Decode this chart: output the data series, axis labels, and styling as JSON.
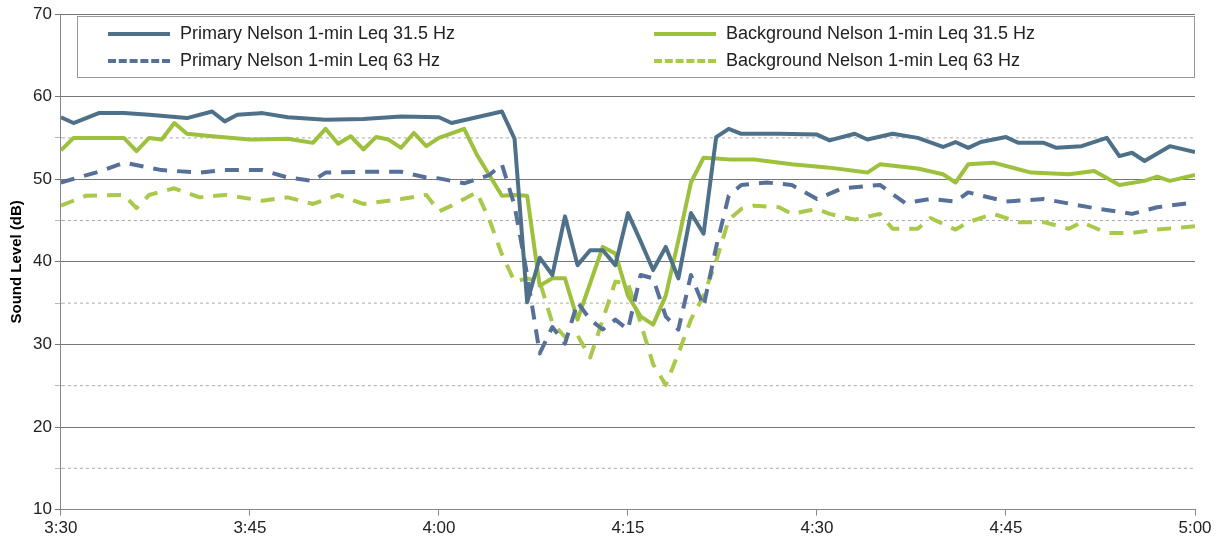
{
  "chart_data": {
    "type": "line",
    "ylabel": "Sound Level (dB)",
    "ylim": [
      10,
      70
    ],
    "yticks": [
      10,
      {
        "value": 15,
        "label": null
      },
      20,
      {
        "value": 25,
        "label": null
      },
      30,
      {
        "value": 35,
        "label": null
      },
      40,
      {
        "value": 45,
        "label": null
      },
      50,
      {
        "value": 55,
        "label": null
      },
      60,
      70
    ],
    "xlim": [
      3.5,
      5
    ],
    "xticks": [
      {
        "value": 3.5,
        "label": "3:30"
      },
      {
        "value": 3.75,
        "label": "3:45"
      },
      {
        "value": 4,
        "label": "4:00"
      },
      {
        "value": 4.25,
        "label": "4:15"
      },
      {
        "value": 4.5,
        "label": "4:30"
      },
      {
        "value": 4.75,
        "label": "4:45"
      },
      {
        "value": 5,
        "label": "5:00"
      }
    ],
    "grid": "y",
    "legend": "top",
    "marker": "none",
    "series": [
      {
        "name": "Primary Nelson 1-min Leq 31.5 Hz",
        "color": "#4e7189",
        "line_style": "solid",
        "x": [
          3.5,
          3.5167,
          3.55,
          3.5833,
          3.6167,
          3.6667,
          3.7,
          3.7167,
          3.7333,
          3.7667,
          3.8,
          3.85,
          3.9,
          3.95,
          4,
          4.0167,
          4.05,
          4.0833,
          4.1,
          4.1167,
          4.1333,
          4.15,
          4.1667,
          4.1833,
          4.2,
          4.2167,
          4.2333,
          4.25,
          4.2667,
          4.2833,
          4.3,
          4.3167,
          4.3333,
          4.35,
          4.3667,
          4.3833,
          4.4,
          4.45,
          4.5,
          4.5167,
          4.55,
          4.5667,
          4.6,
          4.6333,
          4.6667,
          4.6833,
          4.7,
          4.7167,
          4.75,
          4.7667,
          4.8,
          4.8167,
          4.85,
          4.8833,
          4.9,
          4.9167,
          4.9333,
          4.9667,
          5
        ],
        "values": [
          57.5,
          56.8,
          58,
          58,
          57.8,
          57.4,
          58.2,
          57,
          57.8,
          58,
          57.5,
          57.2,
          57.3,
          57.6,
          57.5,
          56.8,
          57.5,
          58.2,
          54.9,
          35.1,
          40.5,
          38.4,
          45.5,
          39.6,
          41.4,
          41.4,
          39.6,
          45.9,
          42.5,
          39,
          41.8,
          38,
          45.9,
          43.4,
          55.1,
          56.1,
          55.5,
          55.5,
          55.4,
          54.7,
          55.5,
          54.8,
          55.5,
          55,
          53.9,
          54.5,
          53.8,
          54.5,
          55.1,
          54.4,
          54.4,
          53.8,
          54,
          55,
          52.8,
          53.2,
          52.2,
          54,
          53.3
        ]
      },
      {
        "name": "Primary Nelson 1-min Leq 63 Hz",
        "color": "#56709a",
        "line_style": "dashed",
        "x": [
          3.5,
          3.55,
          3.5833,
          3.6333,
          3.6833,
          3.7167,
          3.7667,
          3.8,
          3.8333,
          3.85,
          3.9,
          3.95,
          3.9833,
          4,
          4.0333,
          4.0667,
          4.0833,
          4.1,
          4.1167,
          4.1333,
          4.15,
          4.1667,
          4.1833,
          4.2,
          4.2167,
          4.2333,
          4.25,
          4.2667,
          4.2833,
          4.3,
          4.3167,
          4.3333,
          4.35,
          4.3667,
          4.3833,
          4.4,
          4.4333,
          4.4667,
          4.5,
          4.5333,
          4.5833,
          4.6167,
          4.65,
          4.6833,
          4.7,
          4.75,
          4.8,
          4.8667,
          4.9167,
          4.95,
          5
        ],
        "values": [
          49.6,
          50.9,
          52,
          51.1,
          50.8,
          51.1,
          51.1,
          50.2,
          49.8,
          50.8,
          50.9,
          50.9,
          50.2,
          50.1,
          49.5,
          50.5,
          51.8,
          46.8,
          38.4,
          28.9,
          32.1,
          30.1,
          35.1,
          33,
          31.8,
          33,
          31.8,
          38.4,
          38,
          33.4,
          31.8,
          38.4,
          34.6,
          41.8,
          48,
          49.3,
          49.6,
          49.3,
          47.6,
          48.9,
          49.3,
          47.1,
          47.6,
          47.3,
          48.4,
          47.3,
          47.6,
          46.5,
          45.8,
          46.6,
          47.2
        ]
      },
      {
        "name": "Background Nelson 1-min Leq 31.5 Hz",
        "color": "#9dc13c",
        "line_style": "solid",
        "x": [
          3.5,
          3.5167,
          3.55,
          3.5833,
          3.6,
          3.6167,
          3.6333,
          3.65,
          3.6667,
          3.7,
          3.75,
          3.8,
          3.8333,
          3.85,
          3.8667,
          3.8833,
          3.9,
          3.9167,
          3.9333,
          3.95,
          3.9667,
          3.9833,
          4,
          4.0333,
          4.05,
          4.0833,
          4.1,
          4.1167,
          4.1333,
          4.15,
          4.1667,
          4.1833,
          4.2,
          4.2167,
          4.2333,
          4.25,
          4.2667,
          4.2833,
          4.3,
          4.3167,
          4.3333,
          4.35,
          4.3667,
          4.3833,
          4.4,
          4.4167,
          4.4667,
          4.5167,
          4.5667,
          4.5833,
          4.6333,
          4.6667,
          4.6833,
          4.7,
          4.7333,
          4.7833,
          4.8333,
          4.8667,
          4.9,
          4.9333,
          4.95,
          4.9667,
          5
        ],
        "values": [
          53.5,
          55,
          55,
          55,
          53.4,
          55,
          54.8,
          56.8,
          55.5,
          55.2,
          54.8,
          54.9,
          54.4,
          56.1,
          54.3,
          55.2,
          53.6,
          55.1,
          54.8,
          53.8,
          55.6,
          54,
          55,
          56.1,
          53,
          48,
          48.1,
          48,
          37.1,
          38,
          38,
          33,
          37.4,
          41.8,
          41,
          35.9,
          33.4,
          32.4,
          35.9,
          42.6,
          49.6,
          52.6,
          52.5,
          52.4,
          52.4,
          52.4,
          51.8,
          51.4,
          50.8,
          51.8,
          51.3,
          50.6,
          49.6,
          51.8,
          52,
          50.8,
          50.6,
          51,
          49.3,
          49.8,
          50.3,
          49.8,
          50.5
        ]
      },
      {
        "name": "Background Nelson 1-min Leq 63 Hz",
        "color": "#a9c94a",
        "line_style": "dashed",
        "x": [
          3.5,
          3.5333,
          3.5833,
          3.6,
          3.6167,
          3.65,
          3.6833,
          3.7167,
          3.7667,
          3.8,
          3.8333,
          3.8667,
          3.9,
          3.95,
          3.9833,
          4,
          4.0167,
          4.0333,
          4.05,
          4.0667,
          4.0833,
          4.1,
          4.1167,
          4.1333,
          4.15,
          4.1667,
          4.1833,
          4.2,
          4.2167,
          4.2333,
          4.25,
          4.2667,
          4.2833,
          4.3,
          4.3167,
          4.3333,
          4.35,
          4.3667,
          4.3833,
          4.4,
          4.4167,
          4.45,
          4.4667,
          4.5,
          4.5167,
          4.55,
          4.5833,
          4.6,
          4.6333,
          4.65,
          4.6833,
          4.7,
          4.7333,
          4.7667,
          4.8,
          4.8333,
          4.85,
          4.8833,
          4.9167,
          4.95,
          5
        ],
        "values": [
          46.8,
          48,
          48.1,
          46.5,
          48.1,
          48.9,
          47.8,
          48.1,
          47.4,
          47.8,
          47,
          48.1,
          47,
          47.6,
          48.1,
          46.1,
          46.8,
          47.6,
          48.4,
          45.1,
          40.9,
          37.6,
          38,
          37.6,
          32.6,
          30.9,
          31.1,
          28.4,
          33,
          37.6,
          37.4,
          32.6,
          27.6,
          25.1,
          28.9,
          33,
          35.9,
          40.1,
          45.1,
          46.4,
          46.8,
          46.6,
          45.8,
          46.4,
          45.8,
          45.1,
          45.8,
          44,
          44,
          45.3,
          43.9,
          44.8,
          45.8,
          44.8,
          44.8,
          44,
          44.8,
          43.5,
          43.5,
          43.9,
          44.3
        ]
      }
    ]
  }
}
